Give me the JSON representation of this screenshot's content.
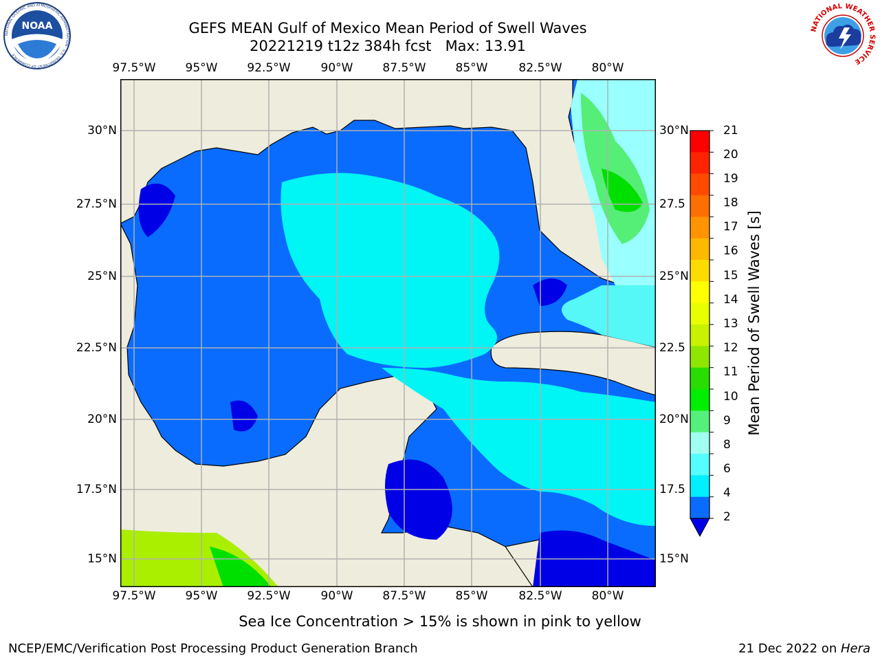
{
  "header": {
    "title_line1": "GEFS MEAN Gulf of Mexico Mean Period of Swell Waves",
    "title_line2": "20221219 t12z 384h fcst   Max: 13.91"
  },
  "logos": {
    "noaa_text": "NOAA",
    "noaa_ring_text": "NATIONAL OCEANIC AND ATMOSPHERIC ADMINISTRATION · U.S. DEPARTMENT OF COMMERCE",
    "nws_ring_text": "NATIONAL WEATHER SERVICE"
  },
  "map": {
    "lon_ticks": [
      "97.5°W",
      "95°W",
      "92.5°W",
      "90°W",
      "87.5°W",
      "85°W",
      "82.5°W",
      "80°W"
    ],
    "lat_ticks_left": [
      "30°N",
      "27.5°N",
      "25°N",
      "22.5°N",
      "20°N",
      "17.5°N",
      "15°N"
    ],
    "lat_ticks_right": [
      "30°N",
      "27.5",
      "25°N",
      "22.5",
      "20°N",
      "17.5",
      "15°N"
    ],
    "colors": {
      "land": "#eeecdc",
      "field_2_4": "#0a6cff",
      "field_below_2": "#0000e6",
      "field_4_6": "#00f5f5",
      "field_6_8": "#55f7f7",
      "field_8_9": "#99ffff",
      "field_9_10": "#55ee77",
      "field_10_11": "#00e000",
      "field_12_14": "#aaee00"
    }
  },
  "colorbar": {
    "label": "Mean Period of Swell Waves [s]",
    "ticks": [
      "21",
      "20",
      "19",
      "18",
      "17",
      "16",
      "15",
      "14",
      "13",
      "12",
      "11",
      "10",
      "9",
      "8",
      "6",
      "4",
      "2"
    ],
    "colors": [
      "#ff0000",
      "#ff2400",
      "#ff4a00",
      "#ff6e00",
      "#ff9400",
      "#ffb800",
      "#ffdc00",
      "#ffff00",
      "#e8ff00",
      "#c8f200",
      "#8fe600",
      "#28dd00",
      "#00ee00",
      "#55f07a",
      "#a0fff0",
      "#55ffff",
      "#00f0ff",
      "#0a6cff"
    ],
    "extend_color": "#0000e6"
  },
  "notes": {
    "ice": "Sea Ice Concentration > 15% is shown in pink to yellow"
  },
  "footer": {
    "left": "NCEP/EMC/Verification Post Processing Product Generation Branch",
    "right_date": "21 Dec 2022 on ",
    "right_machine": "Hera"
  }
}
